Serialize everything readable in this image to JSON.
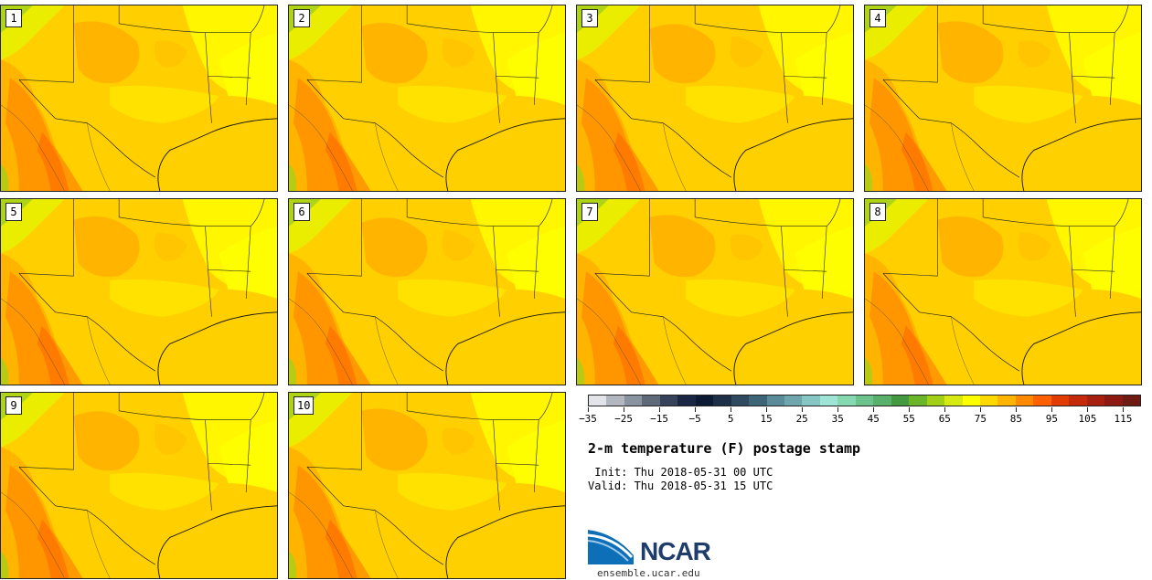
{
  "panels": [
    {
      "label": "1"
    },
    {
      "label": "2"
    },
    {
      "label": "3"
    },
    {
      "label": "4"
    },
    {
      "label": "5"
    },
    {
      "label": "6"
    },
    {
      "label": "7"
    },
    {
      "label": "8"
    },
    {
      "label": "9"
    },
    {
      "label": "10"
    }
  ],
  "colorbar": {
    "colors": [
      "#e3e3ea",
      "#b3b8c0",
      "#8a94a0",
      "#5e6a7a",
      "#36425a",
      "#1a2744",
      "#0d1a33",
      "#1e2f48",
      "#2f4a60",
      "#3e6478",
      "#5b8a98",
      "#6fa6ae",
      "#86c6c4",
      "#9ee5d6",
      "#86d8b0",
      "#6cc48c",
      "#58b06a",
      "#449a3e",
      "#6ab628",
      "#a2d016",
      "#d6ea12",
      "#ffff00",
      "#ffd800",
      "#ffb400",
      "#ff8a00",
      "#ff6000",
      "#e23c00",
      "#c42a0a",
      "#a8200f",
      "#8c1a12",
      "#701a14"
    ],
    "tick_labels": [
      "−35",
      "−25",
      "−15",
      "−5",
      "5",
      "15",
      "25",
      "35",
      "45",
      "55",
      "65",
      "75",
      "85",
      "95",
      "105",
      "115"
    ]
  },
  "title": "2-m temperature (F) postage stamp",
  "init": " Init: Thu 2018-05-31 00 UTC",
  "valid": "Valid: Thu 2018-05-31 15 UTC",
  "logo": {
    "text": "NCAR",
    "url": "ensemble.ucar.edu"
  }
}
